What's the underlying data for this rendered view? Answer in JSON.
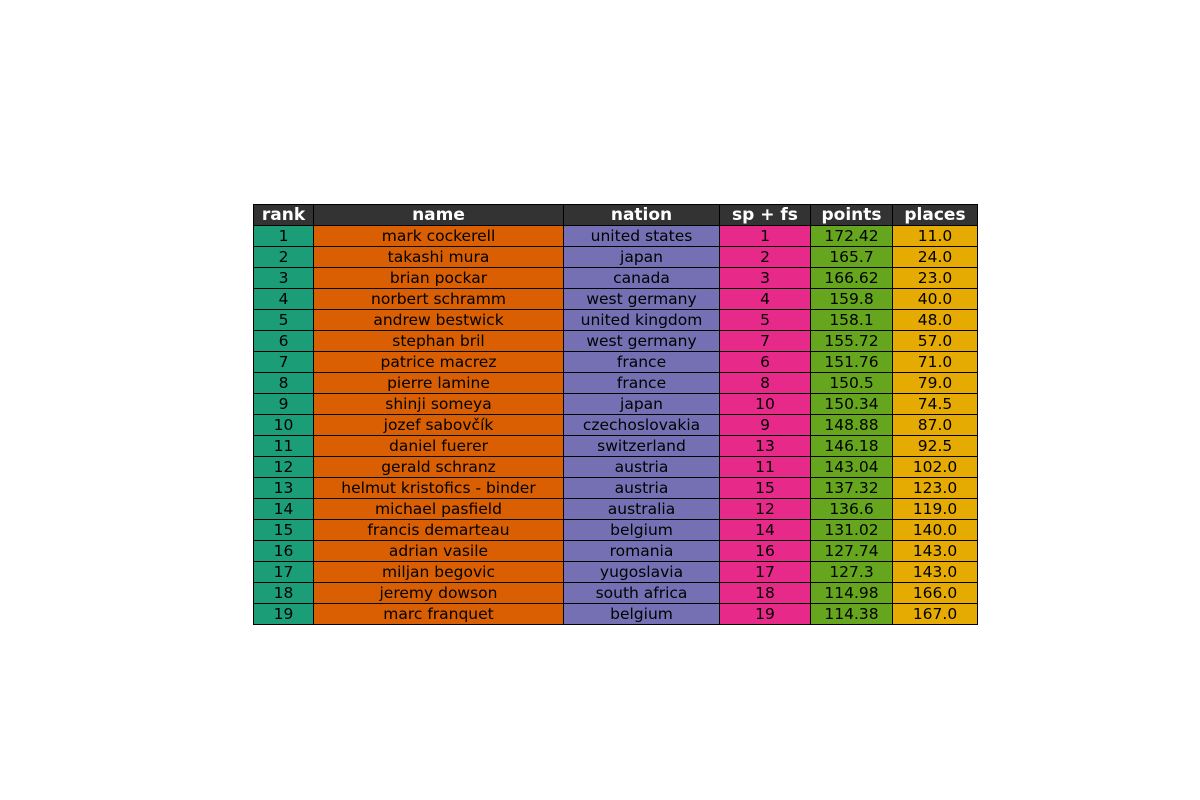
{
  "chart_data": {
    "type": "table",
    "columns": [
      "rank",
      "name",
      "nation",
      "sp + fs",
      "points",
      "places"
    ],
    "column_colors": [
      "#1b9e77",
      "#d95f02",
      "#7570b3",
      "#e7298a",
      "#66a61e",
      "#e6ab02"
    ],
    "header_color": "#333333",
    "rows": [
      [
        "1",
        "mark cockerell",
        "united states",
        "1",
        "172.42",
        "11.0"
      ],
      [
        "2",
        "takashi mura",
        "japan",
        "2",
        "165.7",
        "24.0"
      ],
      [
        "3",
        "brian pockar",
        "canada",
        "3",
        "166.62",
        "23.0"
      ],
      [
        "4",
        "norbert schramm",
        "west germany",
        "4",
        "159.8",
        "40.0"
      ],
      [
        "5",
        "andrew bestwick",
        "united kingdom",
        "5",
        "158.1",
        "48.0"
      ],
      [
        "6",
        "stephan bril",
        "west germany",
        "7",
        "155.72",
        "57.0"
      ],
      [
        "7",
        "patrice macrez",
        "france",
        "6",
        "151.76",
        "71.0"
      ],
      [
        "8",
        "pierre lamine",
        "france",
        "8",
        "150.5",
        "79.0"
      ],
      [
        "9",
        "shinji someya",
        "japan",
        "10",
        "150.34",
        "74.5"
      ],
      [
        "10",
        "jozef sabovčík",
        "czechoslovakia",
        "9",
        "148.88",
        "87.0"
      ],
      [
        "11",
        "daniel fuerer",
        "switzerland",
        "13",
        "146.18",
        "92.5"
      ],
      [
        "12",
        "gerald schranz",
        "austria",
        "11",
        "143.04",
        "102.0"
      ],
      [
        "13",
        "helmut kristofics - binder",
        "austria",
        "15",
        "137.32",
        "123.0"
      ],
      [
        "14",
        "michael pasfield",
        "australia",
        "12",
        "136.6",
        "119.0"
      ],
      [
        "15",
        "francis demarteau",
        "belgium",
        "14",
        "131.02",
        "140.0"
      ],
      [
        "16",
        "adrian vasile",
        "romania",
        "16",
        "127.74",
        "143.0"
      ],
      [
        "17",
        "miljan begovic",
        "yugoslavia",
        "17",
        "127.3",
        "143.0"
      ],
      [
        "18",
        "jeremy dowson",
        "south africa",
        "18",
        "114.98",
        "166.0"
      ],
      [
        "19",
        "marc franquet",
        "belgium",
        "19",
        "114.38",
        "167.0"
      ]
    ]
  }
}
